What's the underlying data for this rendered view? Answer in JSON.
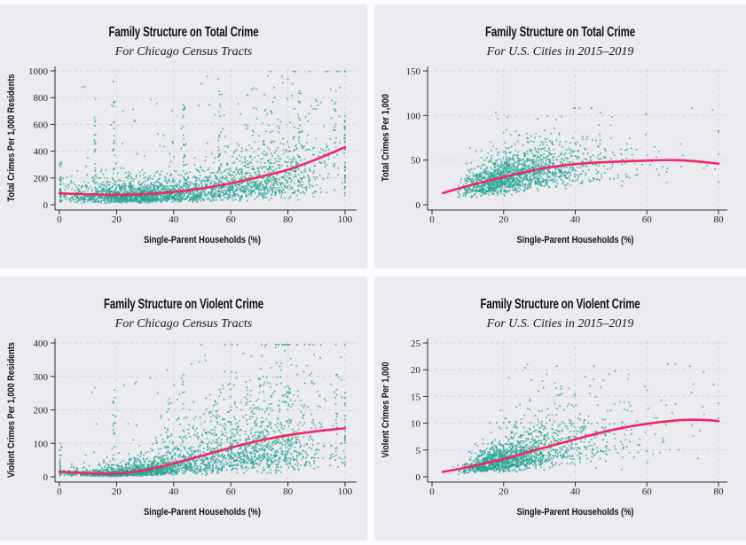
{
  "page": {
    "background": "#fcfcfe",
    "panel_background": "#ecebf0"
  },
  "colors": {
    "scatter": "#27a593",
    "trend": "#f22762",
    "grid": "#d6d5dd",
    "axis": "#2e2e2e",
    "text": "#121212"
  },
  "chart_data": [
    {
      "type": "scatter",
      "title": "Family Structure on Total Crime",
      "subtitle": "For Chicago Census Tracts",
      "xlabel": "Single-Parent Households (%)",
      "ylabel": "Total Crimes Per 1,000 Residents",
      "xlim": [
        0,
        100
      ],
      "ylim": [
        0,
        1000
      ],
      "xticks": [
        0,
        20,
        40,
        60,
        80,
        100
      ],
      "yticks": [
        0,
        200,
        400,
        600,
        800,
        1000
      ],
      "grid": "dashed",
      "legend": "none",
      "trend": [
        [
          0,
          85
        ],
        [
          10,
          78
        ],
        [
          20,
          74
        ],
        [
          30,
          80
        ],
        [
          40,
          95
        ],
        [
          50,
          122
        ],
        [
          60,
          160
        ],
        [
          70,
          207
        ],
        [
          80,
          262
        ],
        [
          90,
          340
        ],
        [
          100,
          430
        ]
      ],
      "scatter": {
        "seed": 11,
        "n": 2700,
        "x_mix": [
          {
            "w": 0.56,
            "mean": 27,
            "sd": 13
          },
          {
            "w": 0.4,
            "mean": 68,
            "sd": 15
          }
        ],
        "x_clamp": [
          0.3,
          100
        ],
        "y_mu_factor": 0.88,
        "y_sigma": 0.62,
        "y_clamp": [
          2,
          995
        ],
        "outlier_rate": 0.018,
        "outlier_max": 995
      },
      "streaks": [
        {
          "x": 0.4,
          "n": 18,
          "y0": 10,
          "y1": 330
        },
        {
          "x": 12.5,
          "n": 20,
          "y0": 80,
          "y1": 800
        },
        {
          "x": 19,
          "n": 24,
          "y0": 60,
          "y1": 930
        },
        {
          "x": 43.5,
          "n": 22,
          "y0": 80,
          "y1": 860
        },
        {
          "x": 56,
          "n": 18,
          "y0": 120,
          "y1": 985
        },
        {
          "x": 84,
          "n": 14,
          "y0": 150,
          "y1": 860
        },
        {
          "x": 96.5,
          "n": 16,
          "y0": 90,
          "y1": 870
        },
        {
          "x": 100,
          "n": 14,
          "y0": 60,
          "y1": 600
        }
      ]
    },
    {
      "type": "scatter",
      "title": "Family Structure on Total Crime",
      "subtitle": "For U.S. Cities in 2015–2019",
      "xlabel": "Single-Parent Households (%)",
      "ylabel": "Total Crimes Per 1,000",
      "xlim": [
        0,
        80
      ],
      "ylim": [
        0,
        150
      ],
      "xticks": [
        0,
        20,
        40,
        60,
        80
      ],
      "yticks": [
        0,
        50,
        100,
        150
      ],
      "grid": "dashed",
      "legend": "none",
      "trend": [
        [
          3,
          13
        ],
        [
          10,
          21
        ],
        [
          20,
          31
        ],
        [
          30,
          40
        ],
        [
          40,
          45.5
        ],
        [
          50,
          48
        ],
        [
          60,
          49.5
        ],
        [
          68,
          50
        ],
        [
          74,
          48.5
        ],
        [
          80,
          46
        ]
      ],
      "scatter": {
        "seed": 22,
        "n": 1650,
        "x_lognorm": {
          "shift": 3,
          "mu": 3.0,
          "sigma": 0.5
        },
        "x_clamp": [
          3,
          80
        ],
        "y_mu_factor": 0.97,
        "y_sigma": 0.36,
        "y_clamp": [
          4,
          108
        ],
        "outlier_rate": 0.004,
        "outlier_max": 108
      },
      "streaks": []
    },
    {
      "type": "scatter",
      "title": "Family Structure on Violent Crime",
      "subtitle": "For Chicago Census Tracts",
      "xlabel": "Single-Parent Households (%)",
      "ylabel": "Violent Crimes Per 1,000 Residents",
      "xlim": [
        0,
        100
      ],
      "ylim": [
        0,
        400
      ],
      "xticks": [
        0,
        20,
        40,
        60,
        80,
        100
      ],
      "yticks": [
        0,
        100,
        200,
        300,
        400
      ],
      "grid": "dashed",
      "legend": "none",
      "trend": [
        [
          0,
          15
        ],
        [
          10,
          11
        ],
        [
          20,
          10
        ],
        [
          30,
          20
        ],
        [
          40,
          40
        ],
        [
          50,
          63
        ],
        [
          60,
          87
        ],
        [
          70,
          108
        ],
        [
          80,
          124
        ],
        [
          90,
          136
        ],
        [
          100,
          145
        ]
      ],
      "scatter": {
        "seed": 33,
        "n": 2700,
        "x_mix": [
          {
            "w": 0.56,
            "mean": 27,
            "sd": 13
          },
          {
            "w": 0.4,
            "mean": 68,
            "sd": 15
          }
        ],
        "x_clamp": [
          0.3,
          100
        ],
        "y_mu_factor": 0.85,
        "y_sigma": 0.72,
        "y_clamp": [
          0.5,
          395
        ],
        "outlier_rate": 0.018,
        "outlier_max": 380
      },
      "streaks": [
        {
          "x": 0.4,
          "n": 16,
          "y0": 3,
          "y1": 90
        },
        {
          "x": 19,
          "n": 16,
          "y0": 20,
          "y1": 260
        },
        {
          "x": 38,
          "n": 12,
          "y0": 30,
          "y1": 205
        },
        {
          "x": 43.5,
          "n": 16,
          "y0": 30,
          "y1": 335
        },
        {
          "x": 55,
          "n": 12,
          "y0": 40,
          "y1": 240
        },
        {
          "x": 70,
          "n": 12,
          "y0": 60,
          "y1": 310
        },
        {
          "x": 80.5,
          "n": 12,
          "y0": 60,
          "y1": 315
        },
        {
          "x": 97,
          "n": 14,
          "y0": 40,
          "y1": 360
        }
      ]
    },
    {
      "type": "scatter",
      "title": "Family Structure on Violent Crime",
      "subtitle": "For U.S. Cities in 2015–2019",
      "xlabel": "Single-Parent Households (%)",
      "ylabel": "Violent Crimes Per 1,000",
      "xlim": [
        0,
        80
      ],
      "ylim": [
        0,
        25
      ],
      "xticks": [
        0,
        20,
        40,
        60,
        80
      ],
      "yticks": [
        0,
        5,
        10,
        15,
        20,
        25
      ],
      "grid": "dashed",
      "legend": "none",
      "trend": [
        [
          3,
          0.9
        ],
        [
          10,
          1.8
        ],
        [
          20,
          3.3
        ],
        [
          30,
          5.2
        ],
        [
          40,
          7.0
        ],
        [
          50,
          8.7
        ],
        [
          60,
          9.9
        ],
        [
          70,
          10.6
        ],
        [
          76,
          10.6
        ],
        [
          80,
          10.4
        ]
      ],
      "scatter": {
        "seed": 44,
        "n": 1650,
        "x_lognorm": {
          "shift": 3,
          "mu": 3.0,
          "sigma": 0.5
        },
        "x_clamp": [
          3,
          80
        ],
        "y_mu_factor": 0.95,
        "y_sigma": 0.5,
        "y_clamp": [
          0.3,
          21
        ],
        "outlier_rate": 0.004,
        "outlier_max": 21
      },
      "streaks": []
    }
  ]
}
